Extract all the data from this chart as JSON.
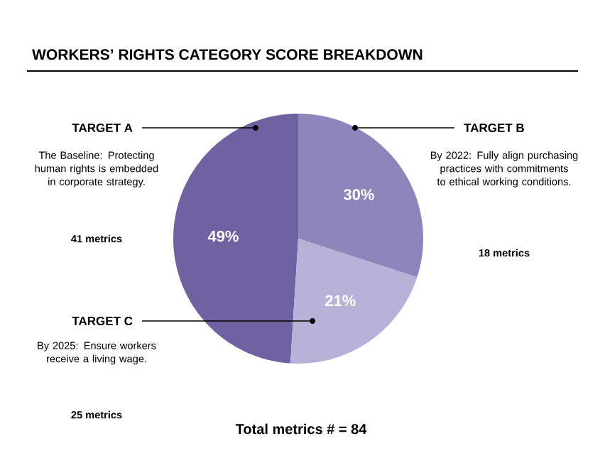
{
  "chart_data": {
    "type": "pie",
    "title": "WORKERS’ RIGHTS CATEGORY SCORE BREAKDOWN",
    "categories": [
      "TARGET A",
      "TARGET C",
      "TARGET B"
    ],
    "values": [
      49,
      21,
      30
    ],
    "colors": [
      "#6e62a3",
      "#b8b2d8",
      "#8e86bb"
    ],
    "value_labels": [
      "49%",
      "21%",
      "30%"
    ],
    "annotations": [
      "The Baseline: Protecting human rights is embedded in corporate strategy.",
      "41 metrics",
      "By 2025: Ensure workers receive a living wage.",
      "25 metrics",
      "By 2022: Fully align purchasing practices with commitments to ethical working conditions.",
      "18 metrics",
      "Total metrics # = 84"
    ]
  }
}
